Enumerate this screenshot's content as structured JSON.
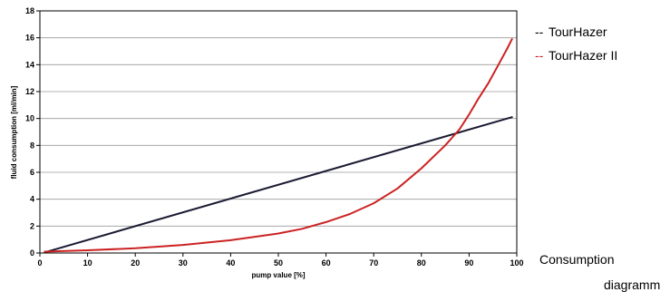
{
  "chart_data": {
    "type": "line",
    "xlabel": "pump value [%]",
    "ylabel": "fluid consumption [ml/min]",
    "xlim": [
      0,
      100
    ],
    "ylim": [
      0,
      18
    ],
    "xticks": [
      0,
      10,
      20,
      30,
      40,
      50,
      60,
      70,
      80,
      90,
      100
    ],
    "yticks": [
      0,
      2,
      4,
      6,
      8,
      10,
      12,
      14,
      16,
      18
    ],
    "grid": "horizontal",
    "legend_placement": "right",
    "series": [
      {
        "name": "TourHazer",
        "legend_marker": "--",
        "color": "#1a1a33",
        "points": [
          [
            1,
            0.05
          ],
          [
            99,
            10.1
          ]
        ]
      },
      {
        "name": "TourHazer II",
        "legend_marker": "--",
        "color": "#cc2222",
        "points": [
          [
            1,
            0.1
          ],
          [
            10,
            0.2
          ],
          [
            20,
            0.35
          ],
          [
            30,
            0.6
          ],
          [
            40,
            0.95
          ],
          [
            50,
            1.45
          ],
          [
            55,
            1.8
          ],
          [
            60,
            2.3
          ],
          [
            65,
            2.9
          ],
          [
            70,
            3.7
          ],
          [
            75,
            4.8
          ],
          [
            80,
            6.3
          ],
          [
            85,
            8.0
          ],
          [
            88,
            9.2
          ],
          [
            90,
            10.3
          ],
          [
            92,
            11.5
          ],
          [
            94,
            12.6
          ],
          [
            96,
            13.9
          ],
          [
            98,
            15.2
          ],
          [
            99,
            15.9
          ]
        ]
      }
    ]
  },
  "caption": {
    "line1": "Consumption",
    "line2": "diagramm"
  }
}
